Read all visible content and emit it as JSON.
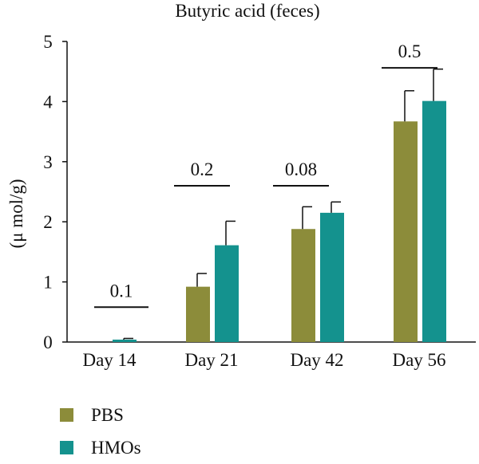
{
  "chart_data": {
    "type": "bar",
    "title": "Butyric acid (feces)",
    "ylabel": "(μ mol/g)",
    "xlabel": "",
    "ylim": [
      0,
      5
    ],
    "yticks": [
      0,
      1,
      2,
      3,
      4,
      5
    ],
    "categories": [
      "Day 14",
      "Day 21",
      "Day 42",
      "Day 56"
    ],
    "series": [
      {
        "name": "PBS",
        "color": "#8c8c3a",
        "values": [
          0.0,
          0.92,
          1.88,
          3.67
        ],
        "errors": [
          0.0,
          0.22,
          0.37,
          0.51
        ]
      },
      {
        "name": "HMOs",
        "color": "#14928e",
        "values": [
          0.04,
          1.61,
          2.15,
          4.01
        ],
        "errors": [
          0.02,
          0.4,
          0.18,
          0.53
        ]
      }
    ],
    "p_values": [
      {
        "category": "Day 14",
        "label": "0.1",
        "y": 0.58
      },
      {
        "category": "Day 21",
        "label": "0.2",
        "y": 2.6
      },
      {
        "category": "Day 42",
        "label": "0.08",
        "y": 2.6
      },
      {
        "category": "Day 56",
        "label": "0.5",
        "y": 4.56
      }
    ],
    "legend_position": "bottom-left",
    "grid": false
  }
}
